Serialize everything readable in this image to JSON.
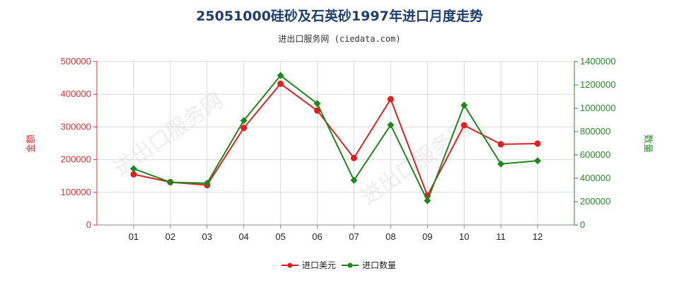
{
  "chart_data": {
    "type": "line",
    "title": "25051000硅砂及石英砂1997年进口月度走势",
    "subtitle": "进出口服务网 (ciedata.com)",
    "categories": [
      "01",
      "02",
      "03",
      "04",
      "05",
      "06",
      "07",
      "08",
      "09",
      "10",
      "11",
      "12"
    ],
    "y_left": {
      "label": "金额",
      "ylim": [
        0,
        500000
      ],
      "ticks": [
        "0",
        "100000",
        "200000",
        "300000",
        "400000",
        "500000"
      ],
      "tick_values": [
        0,
        100000,
        200000,
        300000,
        400000,
        500000
      ]
    },
    "y_right": {
      "label": "数量",
      "ylim": [
        0,
        1400000
      ],
      "ticks": [
        "0",
        "200000",
        "400000",
        "600000",
        "800000",
        "1000000",
        "1200000",
        "1400000"
      ],
      "tick_values": [
        0,
        200000,
        400000,
        600000,
        800000,
        1000000,
        1200000,
        1400000
      ]
    },
    "series": [
      {
        "name": "进口美元",
        "axis": "left",
        "color": "#e02020",
        "values": [
          155000,
          131000,
          122000,
          297000,
          432000,
          350000,
          205000,
          385000,
          90000,
          305000,
          247000,
          249000
        ]
      },
      {
        "name": "进口数量",
        "axis": "right",
        "color": "#1a8a1a",
        "values": [
          482000,
          366000,
          358000,
          895000,
          1280000,
          1040000,
          383000,
          857000,
          208000,
          1026000,
          523000,
          550000
        ]
      }
    ],
    "grid": true,
    "legend_position": "bottom-center"
  }
}
